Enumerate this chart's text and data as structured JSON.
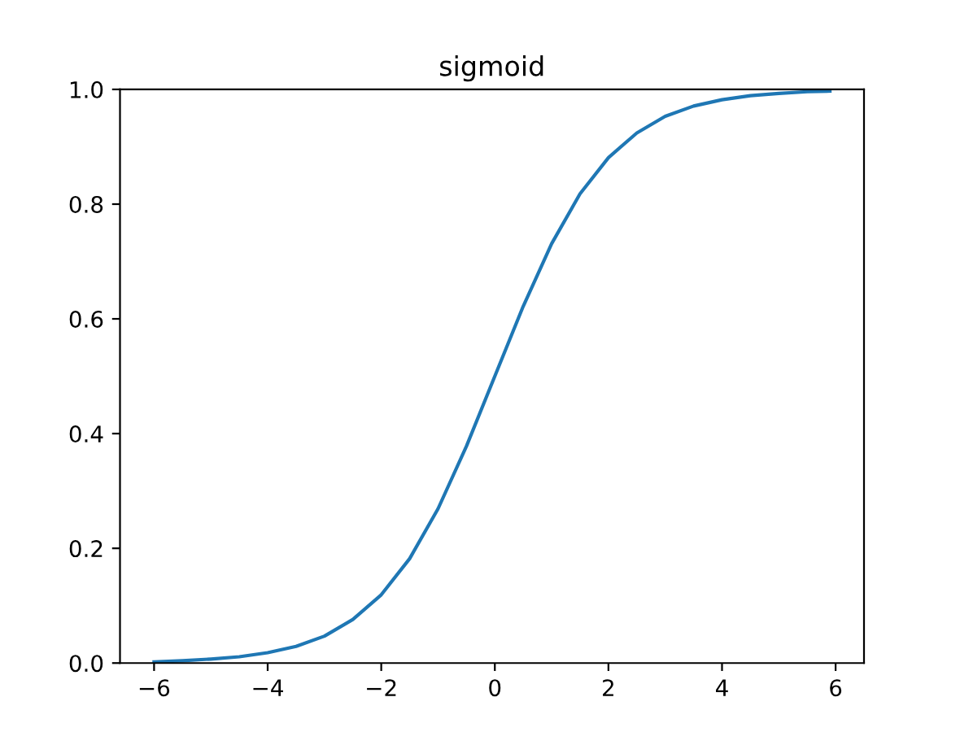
{
  "chart_data": {
    "type": "line",
    "title": "sigmoid",
    "x": [
      -6,
      -5.5,
      -5,
      -4.5,
      -4,
      -3.5,
      -3,
      -2.5,
      -2,
      -1.5,
      -1,
      -0.5,
      0,
      0.5,
      1,
      1.5,
      2,
      2.5,
      3,
      3.5,
      4,
      4.5,
      5,
      5.5,
      5.9
    ],
    "series": [
      {
        "color": "#1f77b4",
        "values": [
          0.002,
          0.004,
          0.007,
          0.011,
          0.018,
          0.029,
          0.047,
          0.076,
          0.119,
          0.182,
          0.269,
          0.378,
          0.5,
          0.622,
          0.731,
          0.818,
          0.881,
          0.924,
          0.953,
          0.971,
          0.982,
          0.989,
          0.993,
          0.996,
          0.997
        ]
      }
    ],
    "xlim": [
      -6.6,
      6.5
    ],
    "xticks": [
      {
        "value": -6,
        "label": "−6"
      },
      {
        "value": -4,
        "label": "−4"
      },
      {
        "value": -2,
        "label": "−2"
      },
      0,
      2,
      4,
      6
    ],
    "ylim": [
      0,
      1
    ],
    "yticks": [
      {
        "value": 0,
        "label": "0.0"
      },
      {
        "value": 0.2,
        "label": "0.2"
      },
      {
        "value": 0.4,
        "label": "0.4"
      },
      {
        "value": 0.6,
        "label": "0.6"
      },
      {
        "value": 0.8,
        "label": "0.8"
      },
      {
        "value": 1,
        "label": "1.0"
      }
    ],
    "grid": false
  }
}
